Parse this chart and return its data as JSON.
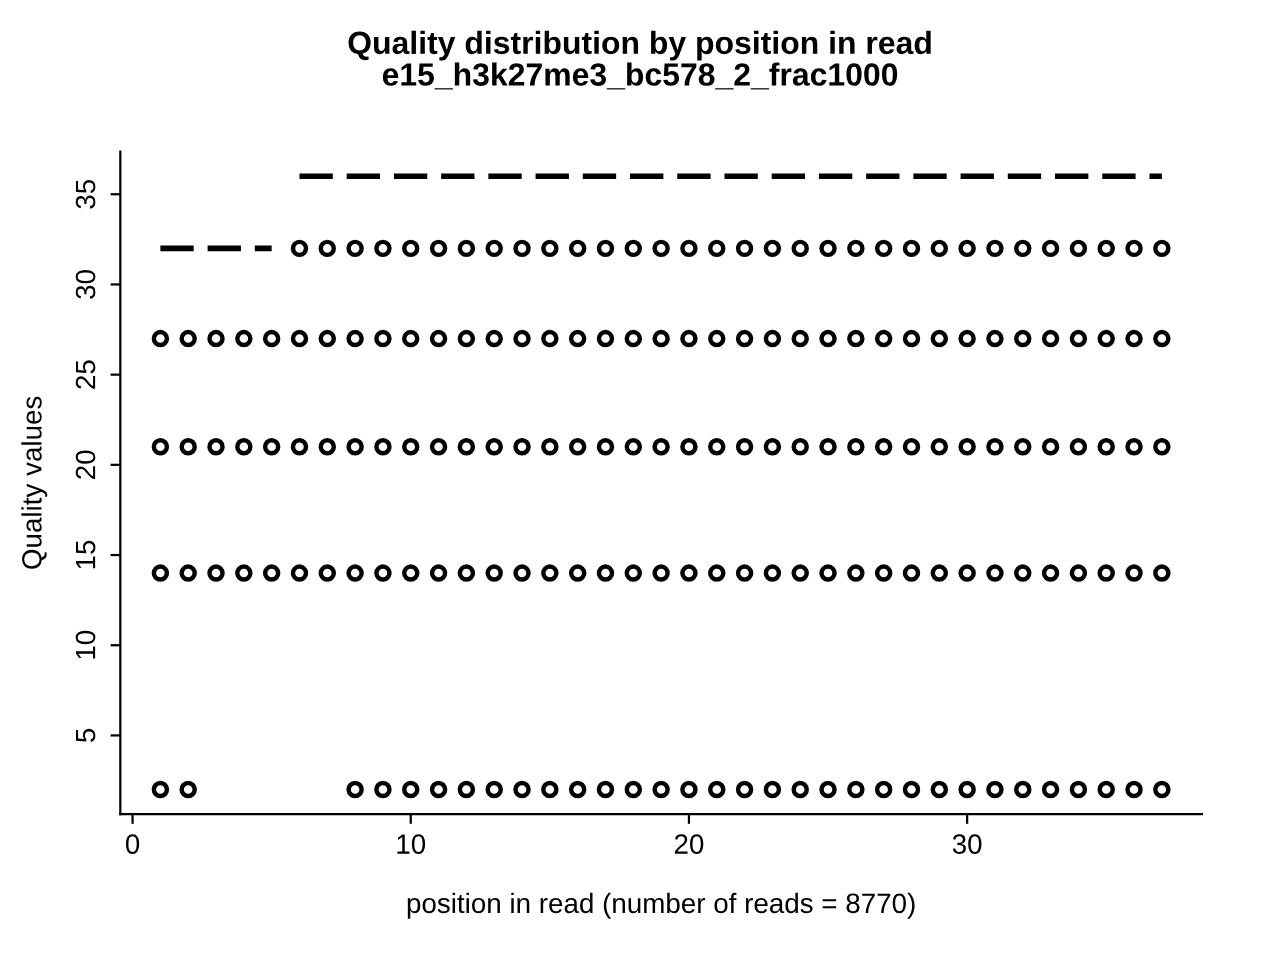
{
  "chart_data": {
    "type": "scatter",
    "title": "Quality distribution by position in read",
    "subtitle": "e15_h3k27me3_bc578_2_frac1000",
    "xlabel": "position in read (number of reads = 8770)",
    "ylabel": "Quality values",
    "x": [
      1,
      2,
      3,
      4,
      5,
      6,
      7,
      8,
      9,
      10,
      11,
      12,
      13,
      14,
      15,
      16,
      17,
      18,
      19,
      20,
      21,
      22,
      23,
      24,
      25,
      26,
      27,
      28,
      29,
      30,
      31,
      32,
      33,
      34,
      35,
      36,
      37
    ],
    "series": [
      {
        "color": "#000000",
        "values": [
          null,
          null,
          null,
          null,
          null,
          32,
          32,
          32,
          32,
          32,
          32,
          32,
          32,
          32,
          32,
          32,
          32,
          32,
          32,
          32,
          32,
          32,
          32,
          32,
          32,
          32,
          32,
          32,
          32,
          32,
          32,
          32,
          32,
          32,
          32,
          32,
          32
        ]
      },
      {
        "color": "#000000",
        "values": [
          27,
          27,
          27,
          27,
          27,
          27,
          27,
          27,
          27,
          27,
          27,
          27,
          27,
          27,
          27,
          27,
          27,
          27,
          27,
          27,
          27,
          27,
          27,
          27,
          27,
          27,
          27,
          27,
          27,
          27,
          27,
          27,
          27,
          27,
          27,
          27,
          27
        ]
      },
      {
        "color": "#000000",
        "values": [
          21,
          21,
          21,
          21,
          21,
          21,
          21,
          21,
          21,
          21,
          21,
          21,
          21,
          21,
          21,
          21,
          21,
          21,
          21,
          21,
          21,
          21,
          21,
          21,
          21,
          21,
          21,
          21,
          21,
          21,
          21,
          21,
          21,
          21,
          21,
          21,
          21
        ]
      },
      {
        "color": "#000000",
        "values": [
          14,
          14,
          14,
          14,
          14,
          14,
          14,
          14,
          14,
          14,
          14,
          14,
          14,
          14,
          14,
          14,
          14,
          14,
          14,
          14,
          14,
          14,
          14,
          14,
          14,
          14,
          14,
          14,
          14,
          14,
          14,
          14,
          14,
          14,
          14,
          14,
          14
        ]
      },
      {
        "color": "#000000",
        "values": [
          2,
          2,
          null,
          null,
          null,
          null,
          null,
          2,
          2,
          2,
          2,
          2,
          2,
          2,
          2,
          2,
          2,
          2,
          2,
          2,
          2,
          2,
          2,
          2,
          2,
          2,
          2,
          2,
          2,
          2,
          2,
          2,
          2,
          2,
          2,
          2,
          2
        ]
      },
      {
        "type": "line",
        "line_style": "dashed",
        "marker": "none",
        "color": "#000000",
        "x": [
          1,
          2,
          3,
          4,
          5
        ],
        "values": [
          32,
          32,
          32,
          32,
          32
        ]
      },
      {
        "type": "line",
        "line_style": "dashed",
        "marker": "none",
        "color": "#000000",
        "x": [
          6,
          7,
          8,
          9,
          10,
          11,
          12,
          13,
          14,
          15,
          16,
          17,
          18,
          19,
          20,
          21,
          22,
          23,
          24,
          25,
          26,
          27,
          28,
          29,
          30,
          31,
          32,
          33,
          34,
          35,
          36,
          37
        ],
        "values": [
          36,
          36,
          36,
          36,
          36,
          36,
          36,
          36,
          36,
          36,
          36,
          36,
          36,
          36,
          36,
          36,
          36,
          36,
          36,
          36,
          36,
          36,
          36,
          36,
          36,
          36,
          36,
          36,
          36,
          36,
          36,
          36
        ]
      }
    ],
    "marker": "circle",
    "xlim": [
      -0.44,
      38.44
    ],
    "ylim": [
      0.64,
      37.36
    ],
    "xticks": [
      0,
      10,
      20,
      30
    ],
    "yticks": [
      5,
      10,
      15,
      20,
      25,
      30,
      35
    ],
    "grid": false,
    "legend": false
  }
}
